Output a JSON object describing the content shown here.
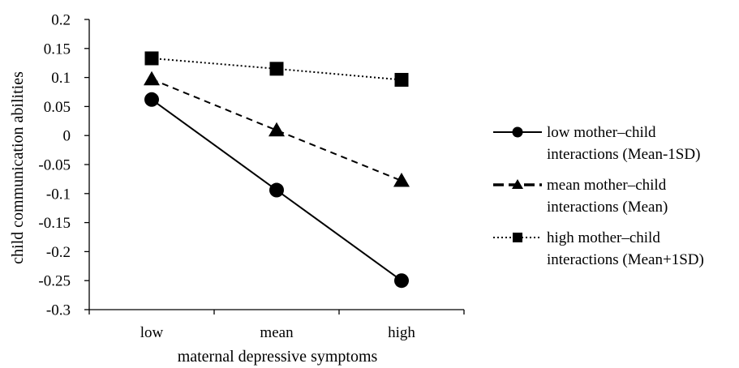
{
  "chart_data": {
    "type": "line",
    "title": "",
    "xlabel": "maternal depressive symptoms",
    "ylabel": "child communication abilities",
    "categories": [
      "low",
      "mean",
      "high"
    ],
    "ylim": [
      -0.3,
      0.2
    ],
    "yticks": [
      0.2,
      0.15,
      0.1,
      0.05,
      0,
      -0.05,
      -0.1,
      -0.15,
      -0.2,
      -0.25,
      -0.3
    ],
    "ytick_labels": [
      "0.2",
      "0.15",
      "0.1",
      "0.05",
      "0",
      "-0.05",
      "-0.1",
      "-0.15",
      "-0.2",
      "-0.25",
      "-0.3"
    ],
    "grid": false,
    "legend_position": "right",
    "series": [
      {
        "name_lines": [
          "low mother–child",
          "interactions (Mean-1SD)"
        ],
        "values": [
          0.062,
          -0.094,
          -0.25
        ],
        "marker": "circle",
        "line_style": "solid",
        "color": "#000000"
      },
      {
        "name_lines": [
          "mean mother–child",
          "interactions (Mean)"
        ],
        "values": [
          0.097,
          0.009,
          -0.078
        ],
        "marker": "triangle",
        "line_style": "dashed",
        "color": "#000000"
      },
      {
        "name_lines": [
          "high mother–child",
          "interactions (Mean+1SD)"
        ],
        "values": [
          0.133,
          0.115,
          0.096
        ],
        "marker": "square",
        "line_style": "dotted",
        "color": "#000000"
      }
    ]
  }
}
